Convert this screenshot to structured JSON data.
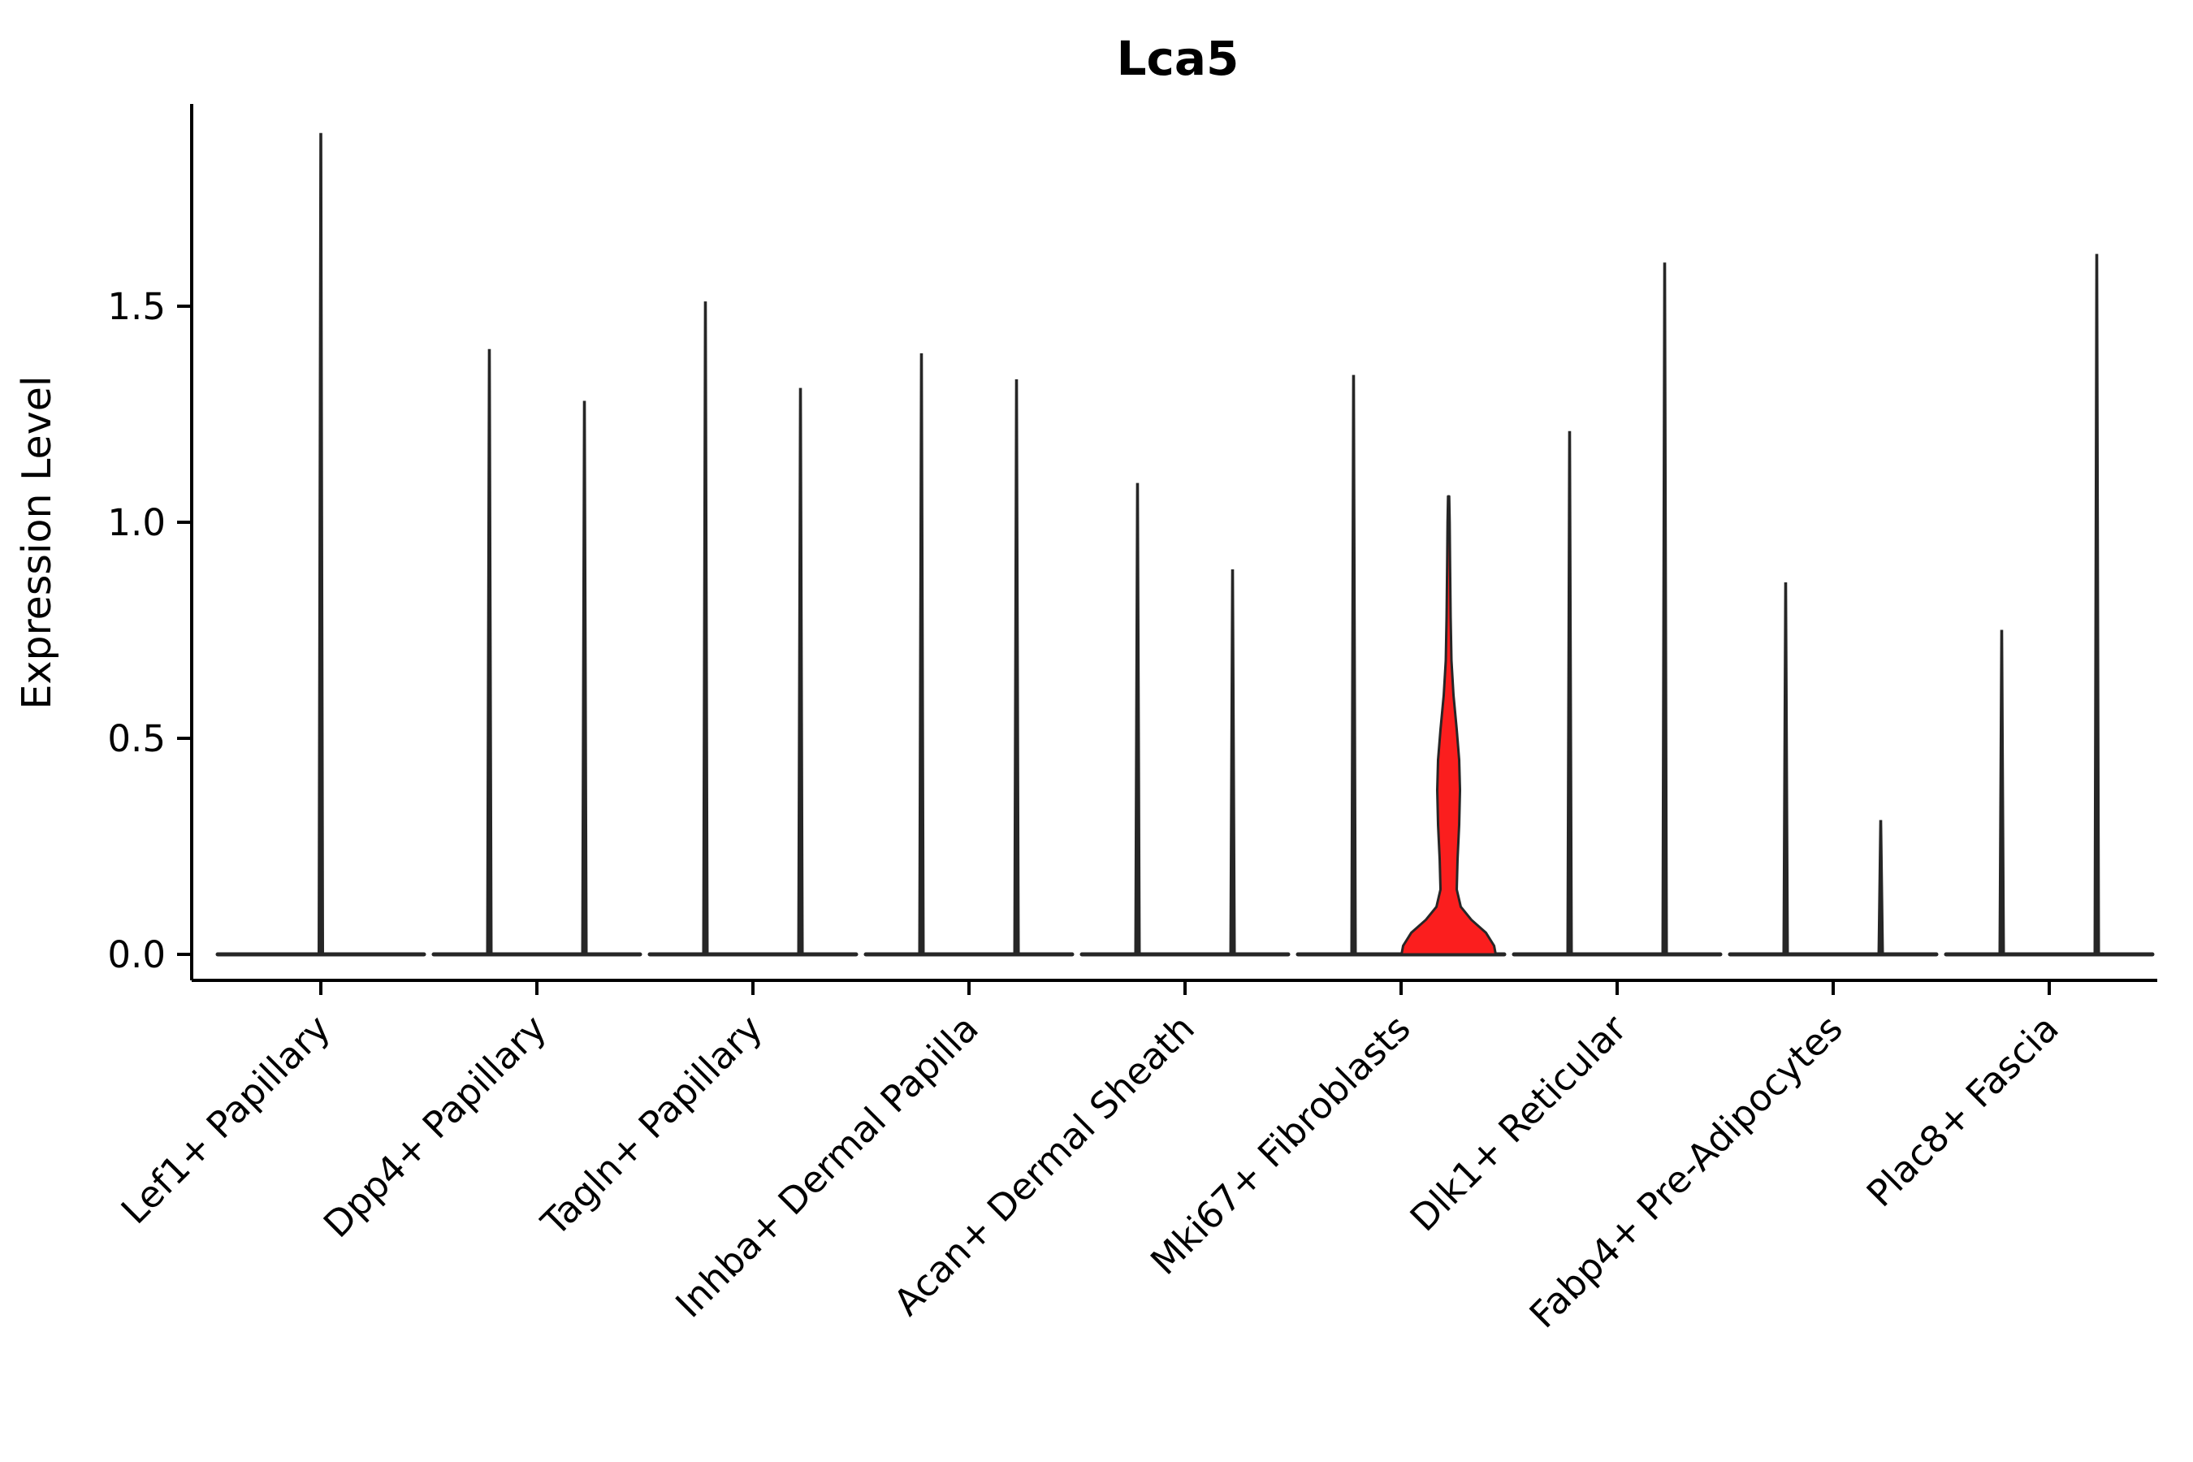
{
  "chart_data": {
    "type": "violin",
    "title": "Lca5",
    "ylabel": "Expression Level",
    "ylim": [
      -0.06,
      1.96
    ],
    "grid": false,
    "legend": "none",
    "violin_color": "#262626",
    "highlight_color": "#fb1e1e",
    "axis_color": "#000000",
    "yticks": [
      {
        "label": "0.0",
        "value": 0.0
      },
      {
        "label": "0.5",
        "value": 0.5
      },
      {
        "label": "1.0",
        "value": 1.0
      },
      {
        "label": "1.5",
        "value": 1.5
      }
    ],
    "categories": [
      {
        "label": "Lef1+ Papillary",
        "violins": [
          {
            "offset": 0.0,
            "max": 1.9
          }
        ]
      },
      {
        "label": "Dpp4+ Papillary",
        "violins": [
          {
            "offset": -0.22,
            "max": 1.4
          },
          {
            "offset": 0.22,
            "max": 1.28
          }
        ]
      },
      {
        "label": "Tagln+ Papillary",
        "violins": [
          {
            "offset": -0.22,
            "max": 1.51
          },
          {
            "offset": 0.22,
            "max": 1.31
          }
        ]
      },
      {
        "label": "Inhba+ Dermal Papilla",
        "violins": [
          {
            "offset": -0.22,
            "max": 1.39
          },
          {
            "offset": 0.22,
            "max": 1.33
          }
        ]
      },
      {
        "label": "Acan+ Dermal Sheath",
        "violins": [
          {
            "offset": -0.22,
            "max": 1.09
          },
          {
            "offset": 0.22,
            "max": 0.89
          }
        ]
      },
      {
        "label": "Mki67+ Fibroblasts",
        "violins": [
          {
            "offset": -0.22,
            "max": 1.34
          },
          {
            "offset": 0.22,
            "max": 1.06,
            "highlight": true
          }
        ]
      },
      {
        "label": "Dlk1+ Reticular",
        "violins": [
          {
            "offset": -0.22,
            "max": 1.21
          },
          {
            "offset": 0.22,
            "max": 1.6
          }
        ]
      },
      {
        "label": "Fabp4+ Pre-Adipocytes",
        "violins": [
          {
            "offset": -0.22,
            "max": 0.86
          },
          {
            "offset": 0.22,
            "max": 0.31
          }
        ]
      },
      {
        "label": "Plac8+ Fascia",
        "violins": [
          {
            "offset": -0.22,
            "max": 0.75
          },
          {
            "offset": 0.22,
            "max": 1.62
          }
        ]
      }
    ],
    "highlight_profile": [
      [
        0.0,
        58
      ],
      [
        0.02,
        56
      ],
      [
        0.05,
        46
      ],
      [
        0.08,
        28
      ],
      [
        0.11,
        15
      ],
      [
        0.15,
        10
      ],
      [
        0.22,
        11
      ],
      [
        0.3,
        13
      ],
      [
        0.38,
        14
      ],
      [
        0.45,
        13
      ],
      [
        0.52,
        10
      ],
      [
        0.6,
        6
      ],
      [
        0.68,
        3.5
      ],
      [
        0.78,
        2.5
      ],
      [
        0.9,
        1.8
      ],
      [
        1.0,
        1.3
      ],
      [
        1.06,
        0.7
      ]
    ]
  }
}
